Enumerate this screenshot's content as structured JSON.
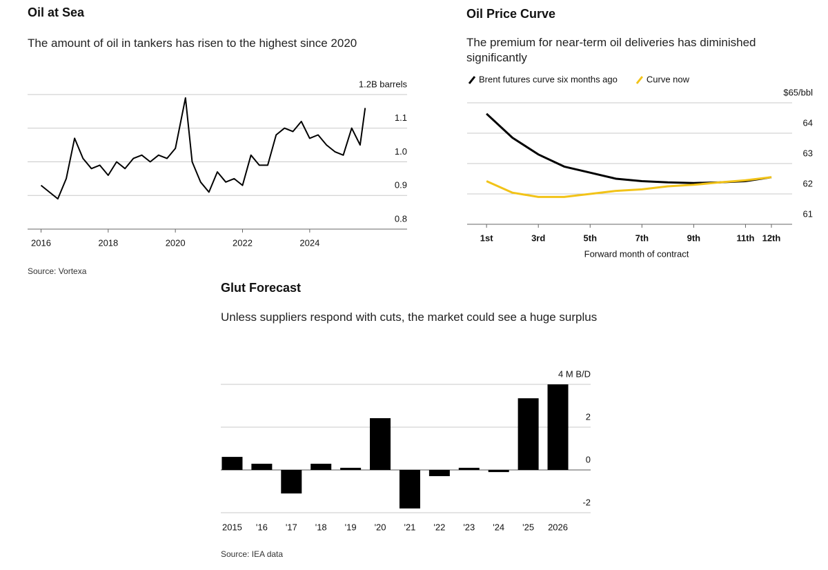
{
  "chart_data": [
    {
      "type": "line",
      "title": "Oil at Sea",
      "subtitle": "The amount of oil in tankers has risen to the highest since 2020",
      "source": "Source: Vortexa",
      "x": [
        2016.0,
        2016.25,
        2016.5,
        2016.75,
        2017.0,
        2017.25,
        2017.5,
        2017.75,
        2018.0,
        2018.25,
        2018.5,
        2018.75,
        2019.0,
        2019.25,
        2019.5,
        2019.75,
        2020.0,
        2020.3,
        2020.5,
        2020.75,
        2021.0,
        2021.25,
        2021.5,
        2021.75,
        2022.0,
        2022.25,
        2022.5,
        2022.75,
        2023.0,
        2023.25,
        2023.5,
        2023.75,
        2024.0,
        2024.25,
        2024.5,
        2024.75,
        2025.0,
        2025.25,
        2025.5,
        2025.65
      ],
      "series": [
        {
          "color": "#000000",
          "values": [
            0.93,
            0.91,
            0.89,
            0.95,
            1.07,
            1.01,
            0.98,
            0.99,
            0.96,
            1.0,
            0.98,
            1.01,
            1.02,
            1.0,
            1.02,
            1.01,
            1.04,
            1.19,
            1.0,
            0.94,
            0.91,
            0.97,
            0.94,
            0.95,
            0.93,
            1.02,
            0.99,
            0.99,
            1.08,
            1.1,
            1.09,
            1.12,
            1.07,
            1.08,
            1.05,
            1.03,
            1.02,
            1.1,
            1.05,
            1.16
          ]
        }
      ],
      "xlim": [
        2015.6,
        2026.9
      ],
      "xticks": [
        2016,
        2018,
        2020,
        2022,
        2024
      ],
      "ylim": [
        0.8,
        1.2
      ],
      "yticks": [
        {
          "value": 1.2,
          "label": "1.2B barrels"
        },
        1.1,
        {
          "value": 1,
          "label": "1.0"
        },
        0.9,
        0.8
      ],
      "grid": true
    },
    {
      "type": "line",
      "title": "Oil Price Curve",
      "subtitle": "The premium for near-term oil deliveries has diminished significantly",
      "x_label": "Forward month of contract",
      "x": [
        1,
        2,
        3,
        4,
        5,
        6,
        7,
        8,
        9,
        10,
        11,
        12
      ],
      "series": [
        {
          "name": "Brent futures curve six months ago",
          "color": "#000000",
          "values": [
            64.64,
            63.85,
            63.3,
            62.9,
            62.7,
            62.5,
            62.42,
            62.38,
            62.36,
            62.38,
            62.42,
            62.55
          ]
        },
        {
          "name": "Curve now",
          "color": "#f2c318",
          "values": [
            62.42,
            62.04,
            61.9,
            61.9,
            62.0,
            62.1,
            62.15,
            62.25,
            62.3,
            62.38,
            62.45,
            62.55
          ]
        }
      ],
      "xlim": [
        0.25,
        12.8
      ],
      "xticks": [
        {
          "value": 1,
          "label": "1st"
        },
        {
          "value": 3,
          "label": "3rd"
        },
        {
          "value": 5,
          "label": "5th"
        },
        {
          "value": 7,
          "label": "7th"
        },
        {
          "value": 9,
          "label": "9th"
        },
        {
          "value": 11,
          "label": "11th"
        },
        {
          "value": 12,
          "label": "12th"
        }
      ],
      "ylim": [
        61,
        65
      ],
      "yticks": [
        {
          "value": 65,
          "label": "$65/bbl"
        },
        64,
        63,
        62,
        61
      ],
      "grid": true
    },
    {
      "type": "bar",
      "title": "Glut Forecast",
      "subtitle": "Unless suppliers respond with cuts, the market could see a huge surplus",
      "source": "Source: IEA data",
      "categories": [
        "2015",
        "'16",
        "'17",
        "'18",
        "'19",
        "'20",
        "'21",
        "'22",
        "'23",
        "'24",
        "'25",
        "2026"
      ],
      "values": [
        0.61,
        0.29,
        -1.1,
        0.29,
        0.1,
        2.42,
        -1.8,
        -0.29,
        0.1,
        -0.1,
        3.35,
        4.0
      ],
      "color": "#000000",
      "ylim": [
        -2,
        4
      ],
      "yticks": [
        {
          "value": 4,
          "label": "4 M B/D"
        },
        2,
        0,
        -2
      ],
      "grid": true
    }
  ]
}
